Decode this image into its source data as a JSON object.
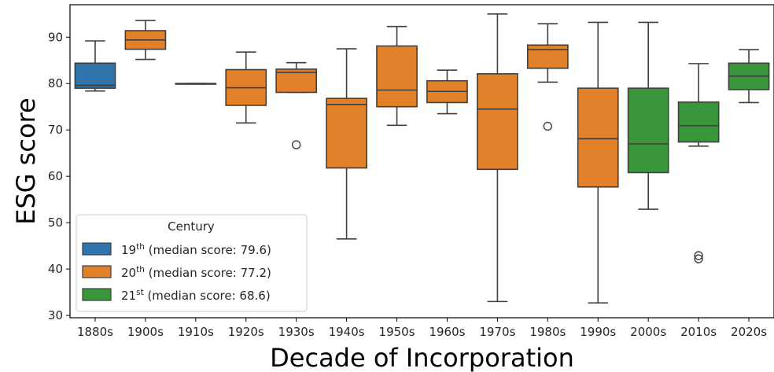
{
  "chart_data": {
    "type": "box",
    "xlabel": "Decade of Incorporation",
    "ylabel": "ESG score",
    "ylim": [
      29.5,
      97
    ],
    "yticks": [
      30,
      40,
      50,
      60,
      70,
      80,
      90
    ],
    "categories": [
      "1880s",
      "1900s",
      "1910s",
      "1920s",
      "1930s",
      "1940s",
      "1950s",
      "1960s",
      "1970s",
      "1980s",
      "1990s",
      "2000s",
      "2010s",
      "2020s"
    ],
    "boxes": [
      {
        "category": "1880s",
        "century": "19th",
        "whisker_low": 78.4,
        "q1": 79.0,
        "median": 79.6,
        "q3": 84.4,
        "whisker_high": 89.2,
        "outliers": []
      },
      {
        "category": "1900s",
        "century": "20th",
        "whisker_low": 85.2,
        "q1": 87.4,
        "median": 89.4,
        "q3": 91.4,
        "whisker_high": 93.6,
        "outliers": []
      },
      {
        "category": "1910s",
        "century": "20th",
        "whisker_low": 80.0,
        "q1": 80.0,
        "median": 80.0,
        "q3": 80.0,
        "whisker_high": 80.0,
        "outliers": []
      },
      {
        "category": "1920s",
        "century": "20th",
        "whisker_low": 71.5,
        "q1": 75.3,
        "median": 79.1,
        "q3": 83.0,
        "whisker_high": 86.8,
        "outliers": []
      },
      {
        "category": "1930s",
        "century": "20th",
        "whisker_low": 78.1,
        "q1": 78.1,
        "median": 82.4,
        "q3": 83.1,
        "whisker_high": 84.5,
        "outliers": [
          66.8
        ]
      },
      {
        "category": "1940s",
        "century": "20th",
        "whisker_low": 46.5,
        "q1": 61.8,
        "median": 75.5,
        "q3": 76.8,
        "whisker_high": 87.5,
        "outliers": []
      },
      {
        "category": "1950s",
        "century": "20th",
        "whisker_low": 71.0,
        "q1": 75.0,
        "median": 78.6,
        "q3": 88.1,
        "whisker_high": 92.3,
        "outliers": []
      },
      {
        "category": "1960s",
        "century": "20th",
        "whisker_low": 73.5,
        "q1": 75.9,
        "median": 78.3,
        "q3": 80.6,
        "whisker_high": 82.9,
        "outliers": []
      },
      {
        "category": "1970s",
        "century": "20th",
        "whisker_low": 33.0,
        "q1": 61.5,
        "median": 74.5,
        "q3": 82.1,
        "whisker_high": 95.0,
        "outliers": []
      },
      {
        "category": "1980s",
        "century": "20th",
        "whisker_low": 80.3,
        "q1": 83.3,
        "median": 87.3,
        "q3": 88.3,
        "whisker_high": 92.9,
        "outliers": [
          70.8
        ]
      },
      {
        "category": "1990s",
        "century": "20th",
        "whisker_low": 32.7,
        "q1": 57.7,
        "median": 68.1,
        "q3": 79.0,
        "whisker_high": 93.2,
        "outliers": []
      },
      {
        "category": "2000s",
        "century": "21st",
        "whisker_low": 52.9,
        "q1": 60.8,
        "median": 67.0,
        "q3": 79.0,
        "whisker_high": 93.2,
        "outliers": []
      },
      {
        "category": "2010s",
        "century": "21st",
        "whisker_low": 66.5,
        "q1": 67.4,
        "median": 70.9,
        "q3": 76.0,
        "whisker_high": 84.3,
        "outliers": [
          42.2,
          42.9
        ]
      },
      {
        "category": "2020s",
        "century": "21st",
        "whisker_low": 75.9,
        "q1": 78.7,
        "median": 81.6,
        "q3": 84.4,
        "whisker_high": 87.3,
        "outliers": []
      }
    ],
    "legend": {
      "title": "Century",
      "placement": "lower-left",
      "entries": [
        {
          "key": "19th",
          "base": "19",
          "sup": "th",
          "label": " (median score: 79.6)",
          "color": "#2f74ad"
        },
        {
          "key": "20th",
          "base": "20",
          "sup": "th",
          "label": " (median score: 77.2)",
          "color": "#e3812b"
        },
        {
          "key": "21st",
          "base": "21",
          "sup": "st",
          "label": " (median score: 68.6)",
          "color": "#3a963a"
        }
      ]
    },
    "grid": false
  }
}
